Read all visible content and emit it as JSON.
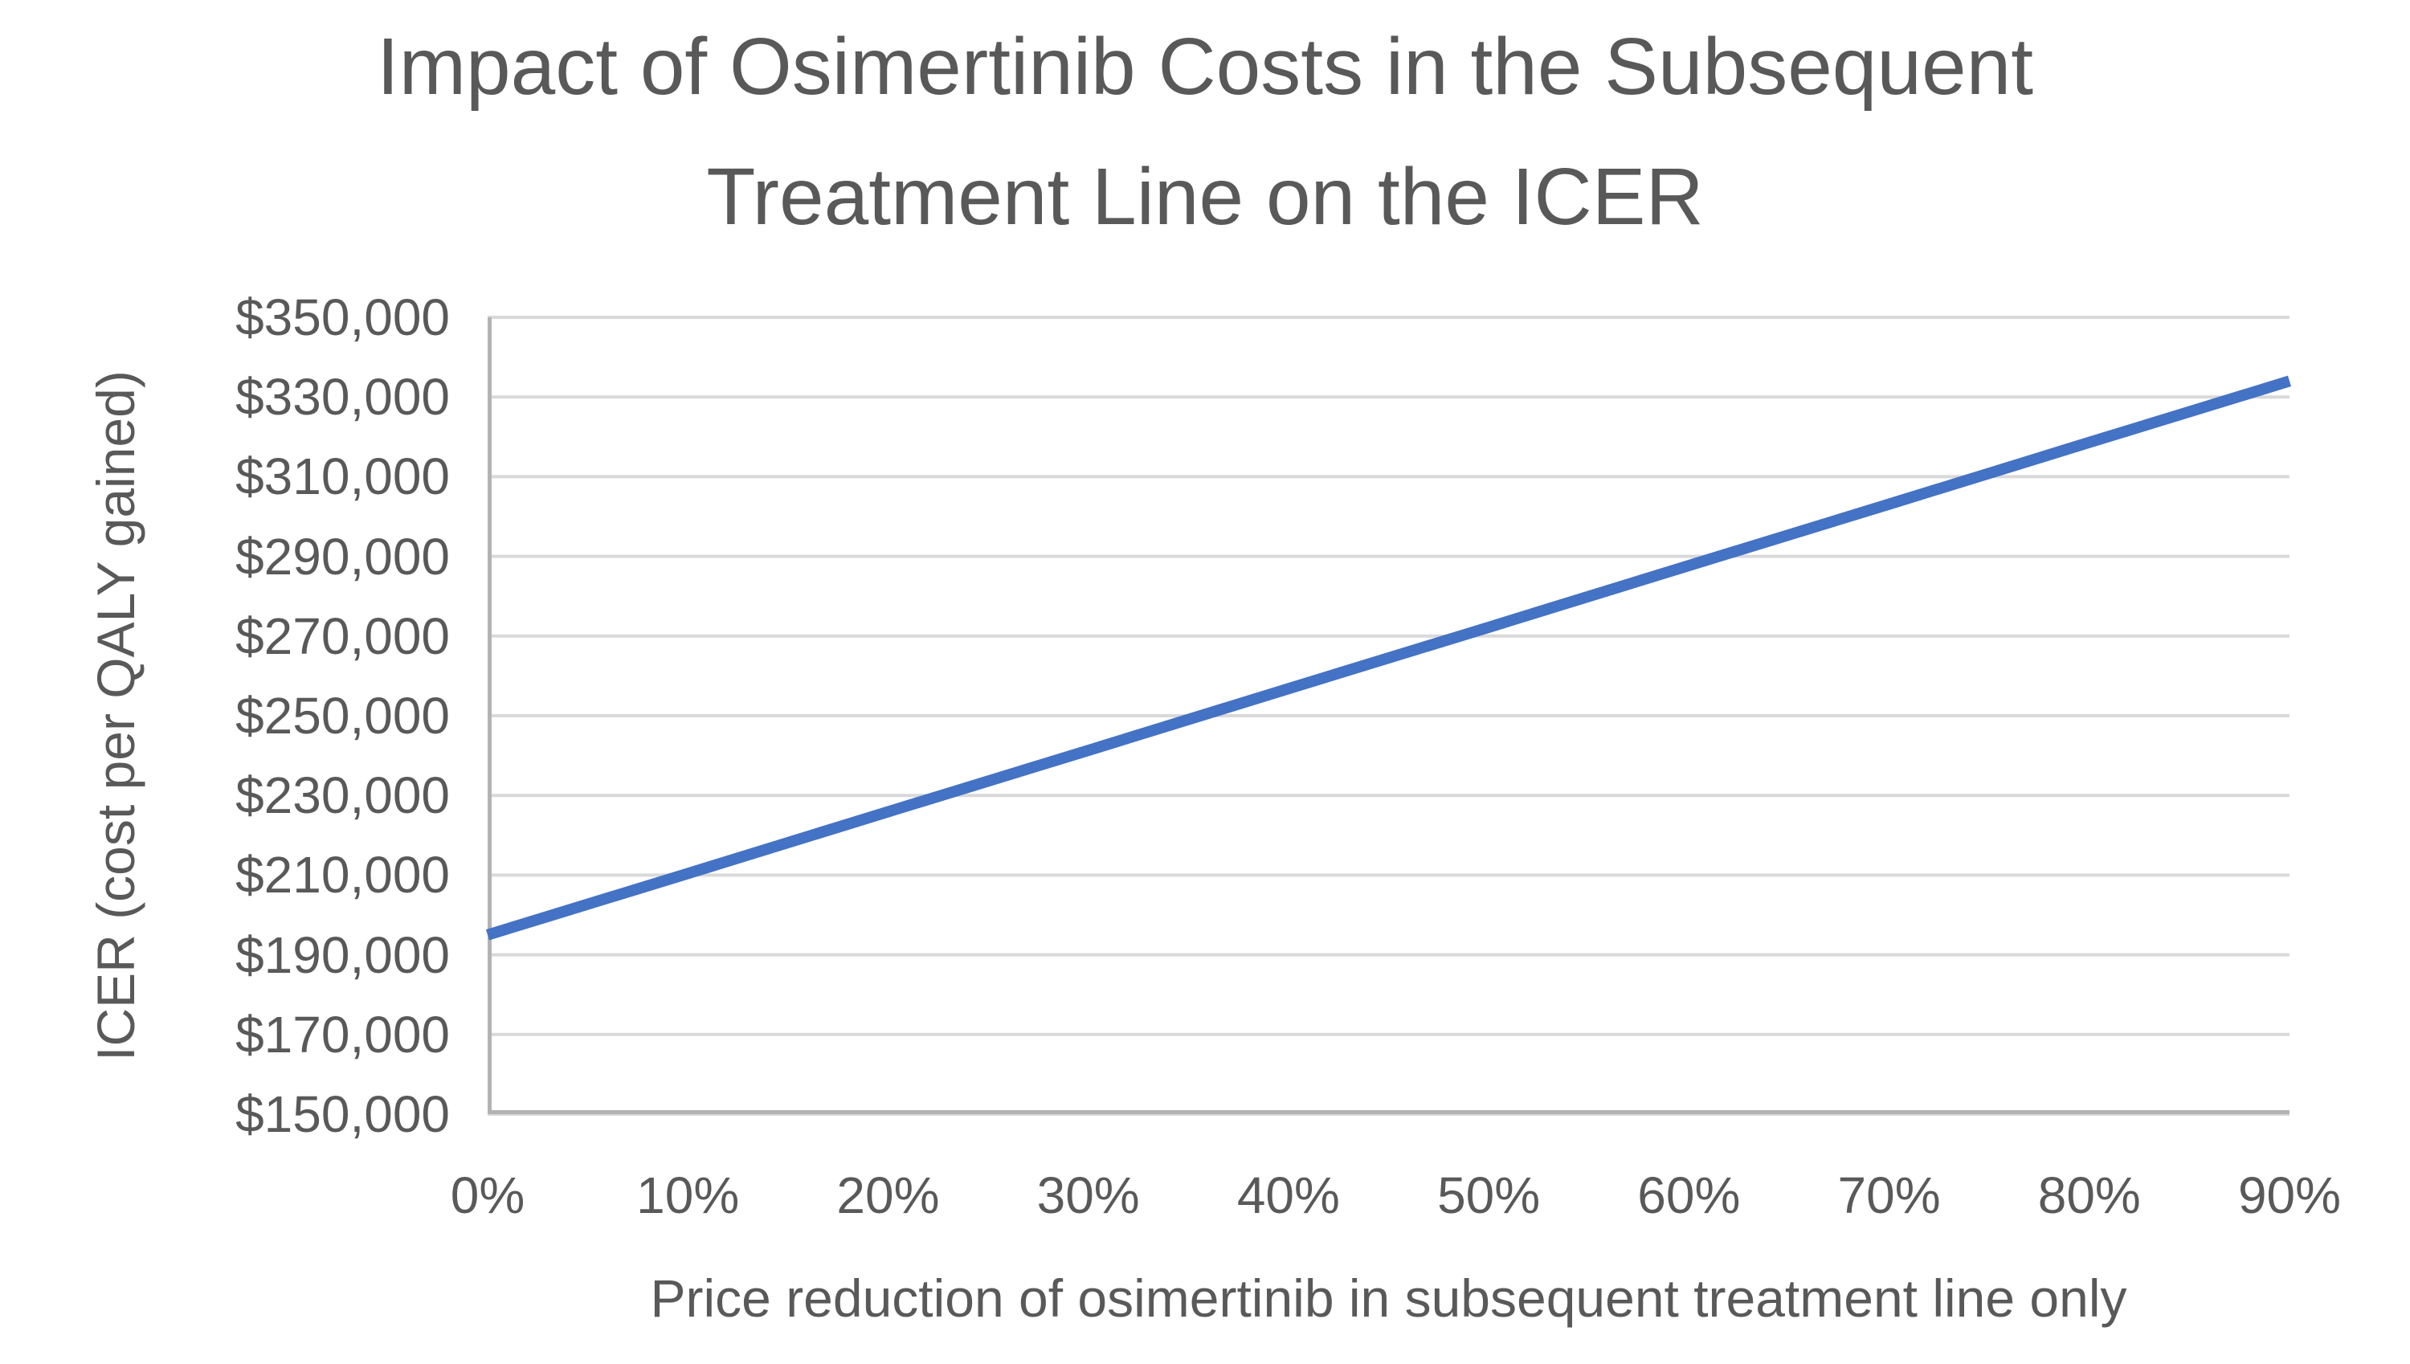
{
  "chart": {
    "title_lines": [
      "Impact of Osimertinib Costs in the Subsequent",
      "Treatment Line on the ICER"
    ],
    "y_axis_title": "ICER (cost per QALY gained)",
    "x_axis_title": "Price reduction of osimertinib in subsequent treatment line only"
  },
  "chart_data": {
    "type": "line",
    "title": "Impact of Osimertinib Costs in the Subsequent Treatment Line on the ICER",
    "xlabel": "Price reduction of osimertinib in subsequent treatment line only",
    "ylabel": "ICER (cost per QALY gained)",
    "categories": [
      "0%",
      "10%",
      "20%",
      "30%",
      "40%",
      "50%",
      "60%",
      "70%",
      "80%",
      "90%"
    ],
    "values": [
      195000,
      210400,
      225900,
      241300,
      256800,
      272200,
      287700,
      303100,
      318600,
      334000
    ],
    "ylim": [
      150000,
      350000
    ],
    "y_tick_step": 20000,
    "y_tick_labels": [
      "$350,000",
      "$330,000",
      "$310,000",
      "$290,000",
      "$270,000",
      "$250,000",
      "$230,000",
      "$210,000",
      "$190,000",
      "$170,000",
      "$150,000"
    ],
    "grid": "horizontal-only",
    "legend": "none",
    "markers": "none"
  },
  "colors": {
    "line": "#4472C4",
    "gridline": "#D9D9D9",
    "axis": "#B3B3B3",
    "text": "#595959",
    "background": "#FFFFFF"
  }
}
